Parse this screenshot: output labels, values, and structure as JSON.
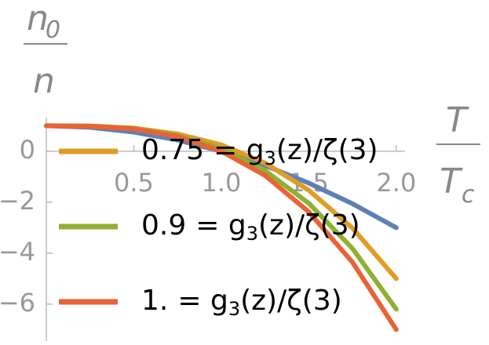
{
  "chart_data": {
    "type": "line",
    "y_label": {
      "numerator": "n",
      "numerator_sub": "0",
      "denominator": "n"
    },
    "x_label": {
      "numerator": "T",
      "denominator": "T",
      "denominator_sub": "c"
    },
    "legend_expression": {
      "text": "= g",
      "sub": "3",
      "rest": "(z)/ζ(3)"
    },
    "x": [
      0,
      0.25,
      0.5,
      0.75,
      1,
      1.25,
      1.5,
      1.75,
      2
    ],
    "series": [
      {
        "color": "#5e81b5",
        "values": [
          1,
          0.94,
          0.75,
          0.44,
          0,
          -0.56,
          -1.25,
          -2.06,
          -3
        ]
      },
      {
        "name": "0.75",
        "color": "#e19c24",
        "values": [
          1,
          0.99,
          0.91,
          0.68,
          0.25,
          -0.46,
          -1.53,
          -3.02,
          -5
        ]
      },
      {
        "name": "0.9",
        "color": "#8fb032",
        "values": [
          1,
          0.99,
          0.89,
          0.62,
          0.1,
          -0.76,
          -2.04,
          -3.82,
          -6.2
        ]
      },
      {
        "name": "1.",
        "color": "#eb6235",
        "values": [
          1,
          0.98,
          0.88,
          0.58,
          0,
          -0.95,
          -2.38,
          -4.36,
          -7
        ]
      }
    ],
    "xlim": [
      0,
      2.05
    ],
    "ylim": [
      -7.45,
      1.32
    ],
    "xticks": [
      0.5,
      {
        "value": 1,
        "label": "1.0"
      },
      1.5,
      {
        "value": 2,
        "label": "2.0"
      }
    ],
    "yticks": [
      0,
      {
        "value": -2,
        "label": "−2"
      },
      {
        "value": -4,
        "label": "−4"
      },
      {
        "value": -6,
        "label": "−6"
      }
    ]
  }
}
